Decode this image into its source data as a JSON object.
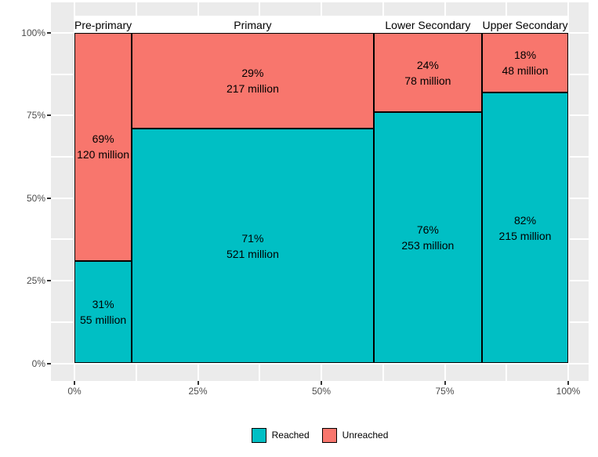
{
  "chart_data": {
    "type": "bar",
    "variant": "mosaic",
    "title": "",
    "xlabel": "",
    "ylabel": "",
    "grid": true,
    "legend_position": "bottom",
    "x_axis": {
      "range": [
        0,
        100
      ],
      "minor_step": 12.5,
      "ticks": [
        {
          "label": "0%",
          "value": 0
        },
        {
          "label": "25%",
          "value": 25
        },
        {
          "label": "50%",
          "value": 50
        },
        {
          "label": "75%",
          "value": 75
        },
        {
          "label": "100%",
          "value": 100
        }
      ]
    },
    "y_axis": {
      "range": [
        0,
        100
      ],
      "minor_step": 12.5,
      "ticks": [
        {
          "label": "0%",
          "value": 0
        },
        {
          "label": "25%",
          "value": 25
        },
        {
          "label": "50%",
          "value": 50
        },
        {
          "label": "75%",
          "value": 75
        },
        {
          "label": "100%",
          "value": 100
        }
      ]
    },
    "categories": [
      {
        "label": "Pre-primary",
        "total_millions": 175,
        "segments": [
          {
            "name": "Unreached",
            "pct": 69,
            "pct_label": "69%",
            "count_label": "120 million",
            "millions": 120
          },
          {
            "name": "Reached",
            "pct": 31,
            "pct_label": "31%",
            "count_label": "55 million",
            "millions": 55
          }
        ]
      },
      {
        "label": "Primary",
        "total_millions": 738,
        "segments": [
          {
            "name": "Unreached",
            "pct": 29,
            "pct_label": "29%",
            "count_label": "217 million",
            "millions": 217
          },
          {
            "name": "Reached",
            "pct": 71,
            "pct_label": "71%",
            "count_label": "521 million",
            "millions": 521
          }
        ]
      },
      {
        "label": "Lower Secondary",
        "total_millions": 331,
        "segments": [
          {
            "name": "Unreached",
            "pct": 24,
            "pct_label": "24%",
            "count_label": "78 million",
            "millions": 78
          },
          {
            "name": "Reached",
            "pct": 76,
            "pct_label": "76%",
            "count_label": "253 million",
            "millions": 253
          }
        ]
      },
      {
        "label": "Upper Secondary",
        "total_millions": 263,
        "segments": [
          {
            "name": "Unreached",
            "pct": 18,
            "pct_label": "18%",
            "count_label": "48 million",
            "millions": 48
          },
          {
            "name": "Reached",
            "pct": 82,
            "pct_label": "82%",
            "count_label": "215 million",
            "millions": 215
          }
        ]
      }
    ]
  },
  "legend": {
    "items": [
      {
        "label": "Reached",
        "color_key": "reached"
      },
      {
        "label": "Unreached",
        "color_key": "unreached"
      }
    ]
  },
  "colors": {
    "reached": "#00BFC4",
    "unreached": "#F8766D",
    "panel_background": "#EBEBEB",
    "gridline": "#FFFFFF",
    "axis_text": "#4D4D4D",
    "tick_mark": "#333333",
    "segment_border": "#000000",
    "label_text": "#000000",
    "page_background": "#FFFFFF"
  }
}
